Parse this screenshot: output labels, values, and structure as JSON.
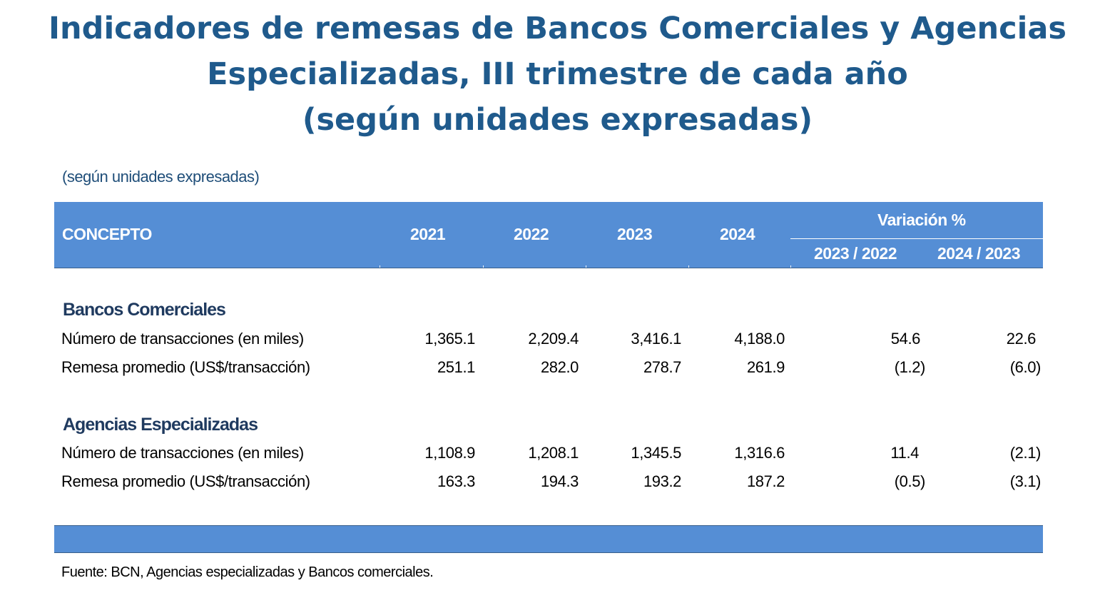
{
  "title": {
    "line1": "Indicadores de remesas de Bancos Comerciales y Agencias",
    "line2": "Especializadas, III trimestre de cada año",
    "line3": "(según unidades expresadas)"
  },
  "units_note": "(según unidades expresadas)",
  "colors": {
    "title": "#1F5A8C",
    "header_bg": "#558ED5",
    "header_text": "#FFFFFF"
  },
  "chart_data": {
    "type": "table",
    "header": {
      "concept": "CONCEPTO",
      "years": [
        "2021",
        "2022",
        "2023",
        "2024"
      ],
      "variation_title": "Variación %",
      "variation_cols": [
        "2023 / 2022",
        "2024 / 2023"
      ]
    },
    "sections": [
      {
        "name": "Bancos Comerciales",
        "rows": [
          {
            "label": "Número de transacciones (en miles)",
            "values": [
              "1,365.1",
              "2,209.4",
              "3,416.1",
              "4,188.0"
            ],
            "variation": [
              "54.6",
              "22.6"
            ]
          },
          {
            "label": "Remesa promedio (US$/transacción)",
            "values": [
              "251.1",
              "282.0",
              "278.7",
              "261.9"
            ],
            "variation": [
              "(1.2)",
              "(6.0)"
            ]
          }
        ]
      },
      {
        "name": "Agencias Especializadas",
        "rows": [
          {
            "label": "Número de transacciones (en miles)",
            "values": [
              "1,108.9",
              "1,208.1",
              "1,345.5",
              "1,316.6"
            ],
            "variation": [
              "11.4",
              "(2.1)"
            ]
          },
          {
            "label": "Remesa promedio (US$/transacción)",
            "values": [
              "163.3",
              "194.3",
              "193.2",
              "187.2"
            ],
            "variation": [
              "(0.5)",
              "(3.1)"
            ]
          }
        ]
      }
    ]
  },
  "source": "Fuente: BCN, Agencias especializadas y Bancos comerciales."
}
